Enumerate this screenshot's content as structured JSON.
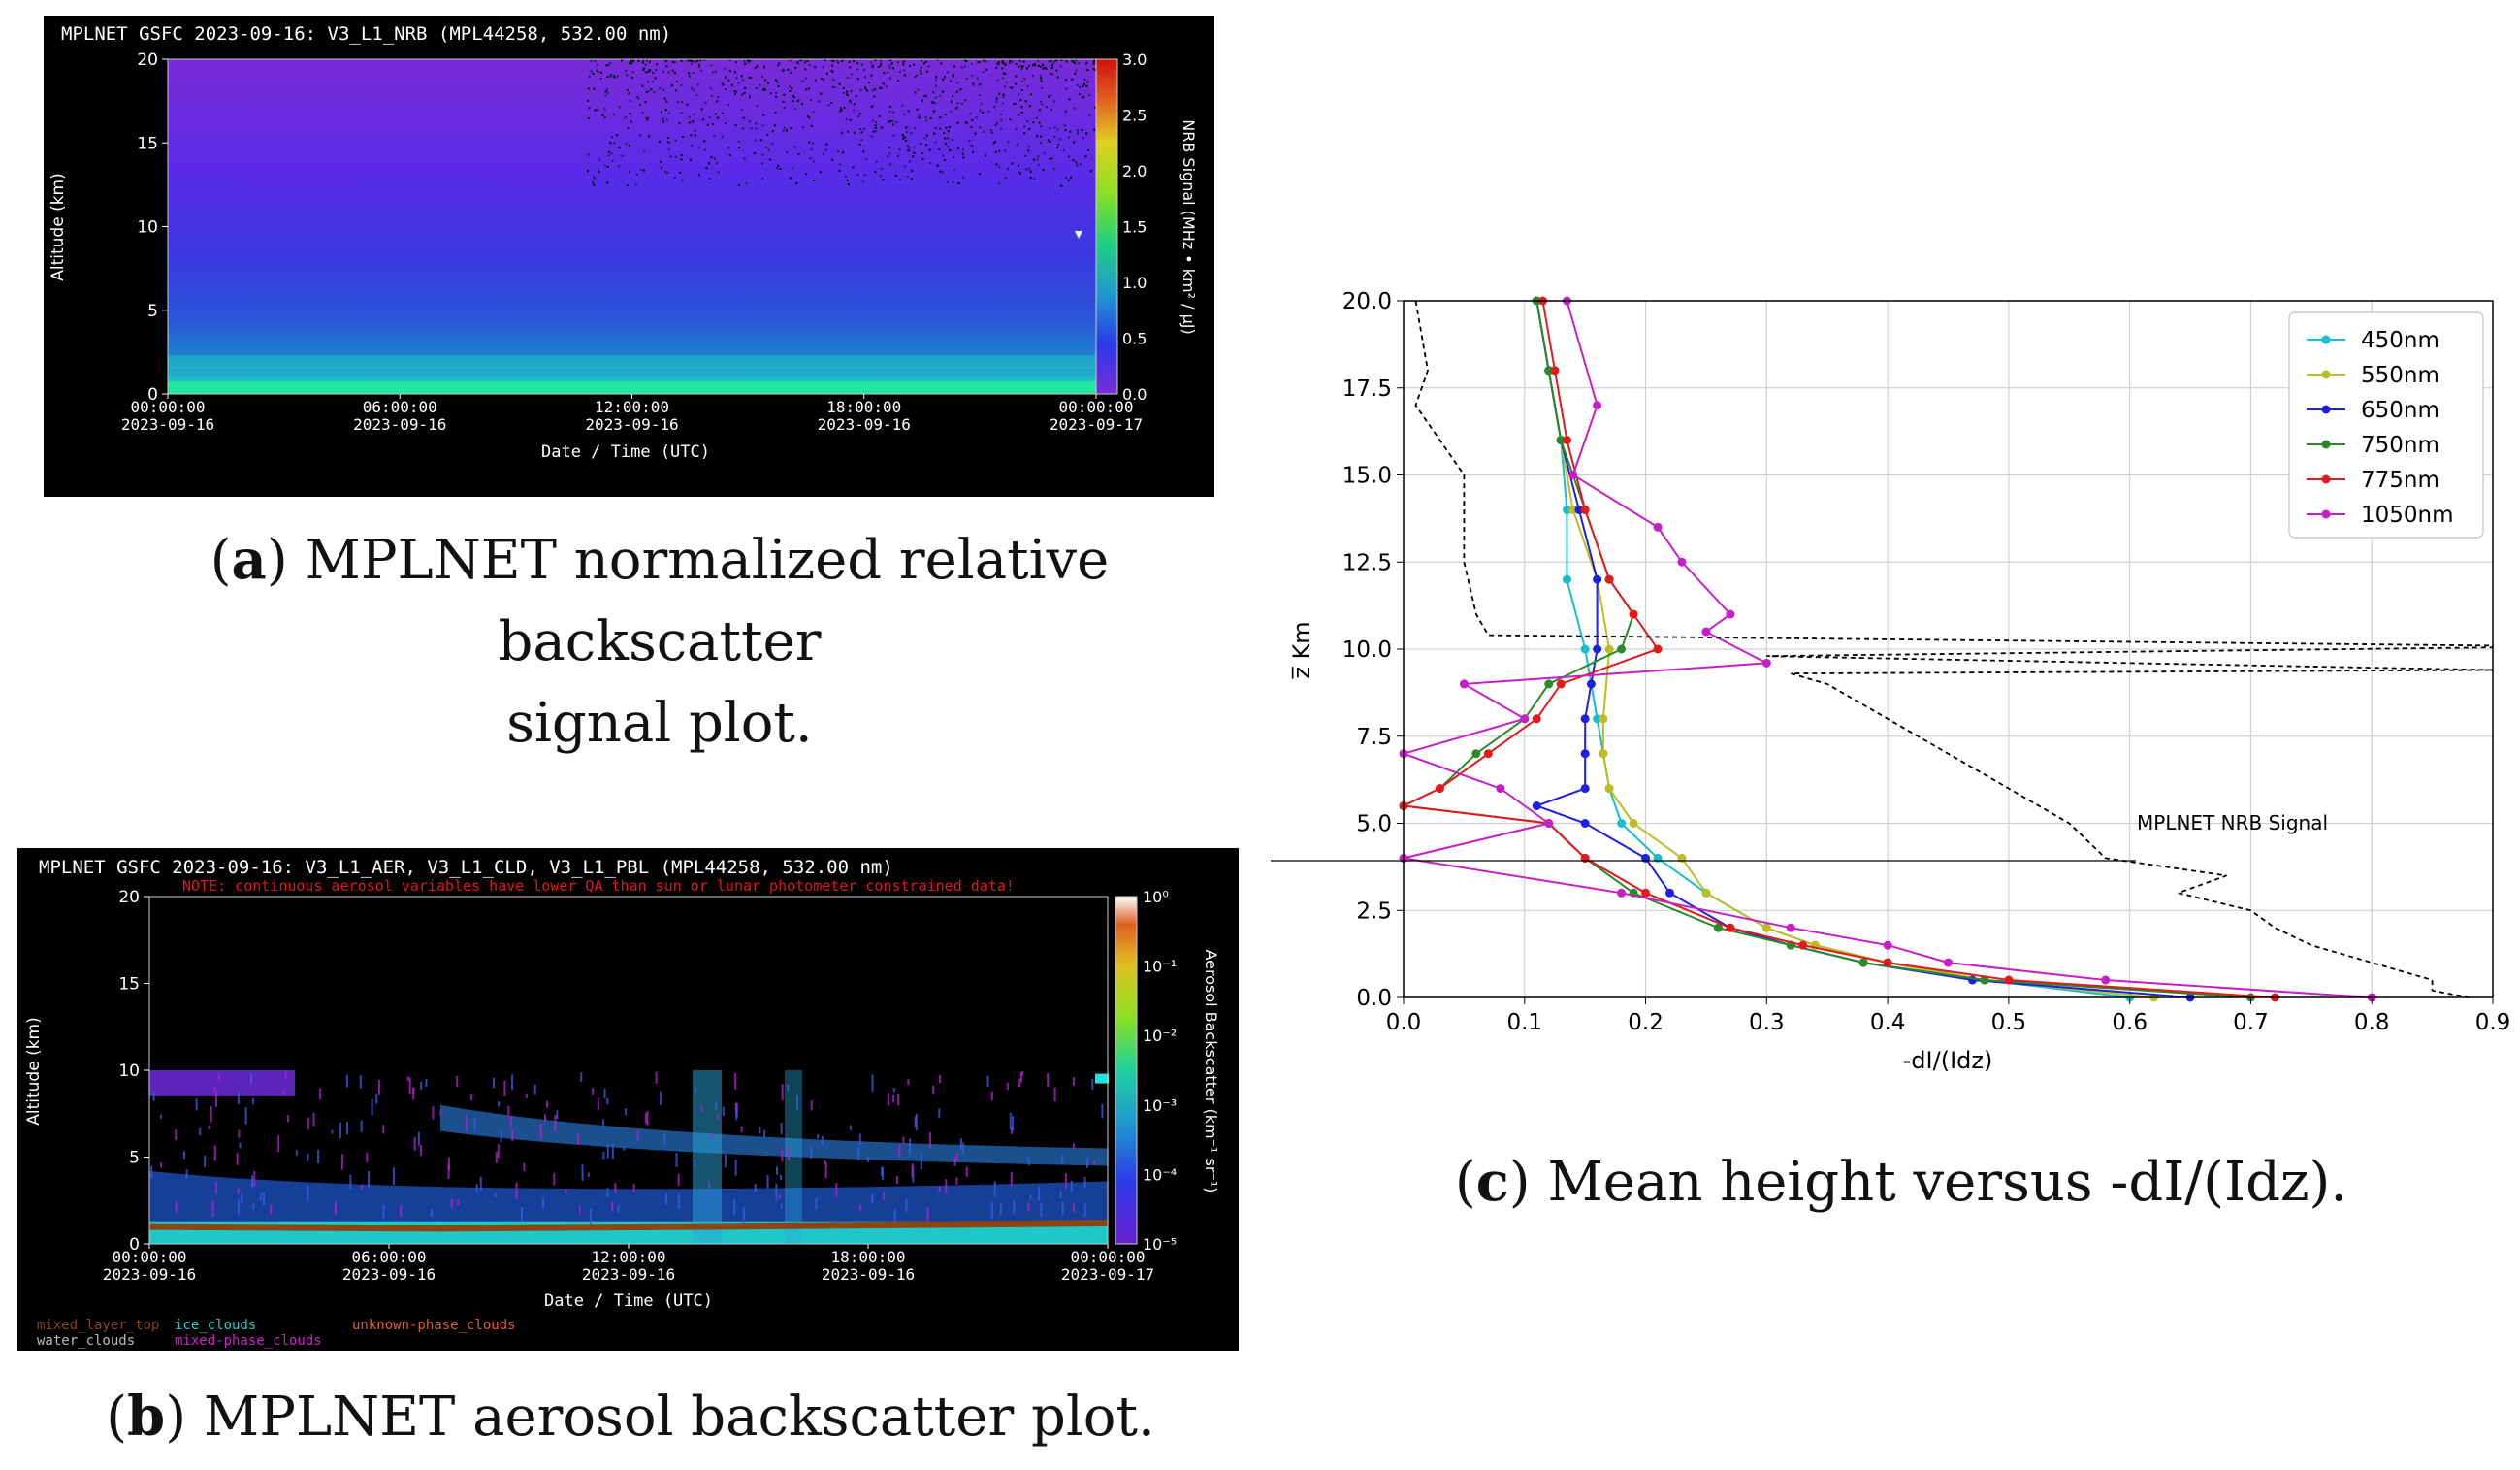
{
  "panels": {
    "a": {
      "title": "MPLNET GSFC 2023-09-16:  V3_L1_NRB  (MPL44258, 532.00 nm)",
      "ylabel": "Altitude (km)",
      "yticks": [
        "20",
        "15",
        "10",
        "5",
        "0"
      ],
      "xticks_time": [
        "00:00:00",
        "06:00:00",
        "12:00:00",
        "18:00:00",
        "00:00:00"
      ],
      "xticks_date": [
        "2023-09-16",
        "2023-09-16",
        "2023-09-16",
        "2023-09-16",
        "2023-09-17"
      ],
      "xlabel": "Date / Time (UTC)",
      "colorbar_label": "NRB Signal (MHz • km² / μJ)",
      "colorbar_ticks": [
        "3.0",
        "2.5",
        "2.0",
        "1.5",
        "1.0",
        "0.5",
        "0.0"
      ],
      "caption_letter": "a",
      "caption_line1": " MPLNET normalized relative backscatter",
      "caption_line2": "signal plot."
    },
    "b": {
      "title": "MPLNET GSFC 2023-09-16:  V3_L1_AER, V3_L1_CLD, V3_L1_PBL  (MPL44258, 532.00 nm)",
      "note": "NOTE: continuous aerosol variables have lower QA than sun or lunar photometer constrained data!",
      "ylabel": "Altitude (km)",
      "yticks": [
        "20",
        "15",
        "10",
        "5",
        "0"
      ],
      "xticks_time": [
        "00:00:00",
        "06:00:00",
        "12:00:00",
        "18:00:00",
        "00:00:00"
      ],
      "xticks_date": [
        "2023-09-16",
        "2023-09-16",
        "2023-09-16",
        "2023-09-16",
        "2023-09-17"
      ],
      "xlabel": "Date / Time (UTC)",
      "colorbar_label": "Aerosol Backscatter (km⁻¹ sr⁻¹)",
      "colorbar_ticks": [
        "10⁰",
        "10⁻¹",
        "10⁻²",
        "10⁻³",
        "10⁻⁴",
        "10⁻⁵"
      ],
      "legend": [
        "mixed_layer_top",
        "water_clouds",
        "ice_clouds",
        "mixed-phase_clouds",
        "unknown-phase_clouds"
      ],
      "caption_letter": "b",
      "caption_text": " MPLNET aerosol backscatter plot."
    },
    "c": {
      "caption_letter": "c",
      "caption_text": " Mean height versus -dI/(Idz)."
    }
  },
  "chart_data": {
    "type": "line",
    "xlabel": "-dI/(Idz)",
    "ylabel": "z̅ Km",
    "xlim": [
      0.0,
      0.9
    ],
    "ylim": [
      0.0,
      20.0
    ],
    "xticks": [
      "0.0",
      "0.1",
      "0.2",
      "0.3",
      "0.4",
      "0.5",
      "0.6",
      "0.7",
      "0.8",
      "0.9"
    ],
    "yticks": [
      "0.0",
      "2.5",
      "5.0",
      "7.5",
      "10.0",
      "12.5",
      "15.0",
      "17.5",
      "20.0"
    ],
    "grid": true,
    "legend_position": "top-right",
    "annotation": "MPLNET NRB Signal",
    "series": [
      {
        "name": "450nm",
        "color": "#17becf",
        "y": [
          20.0,
          18.0,
          16.0,
          14.0,
          12.0,
          10.0,
          8.0,
          7.0,
          6.0,
          5.0,
          4.0,
          3.0,
          2.0,
          1.5,
          1.0,
          0.5,
          0.0
        ],
        "x": [
          0.11,
          0.12,
          0.13,
          0.135,
          0.135,
          0.15,
          0.16,
          0.165,
          0.17,
          0.18,
          0.21,
          0.25,
          0.3,
          0.34,
          0.4,
          0.48,
          0.6
        ]
      },
      {
        "name": "550nm",
        "color": "#bcbd22",
        "y": [
          20.0,
          18.0,
          16.0,
          14.0,
          12.0,
          10.0,
          8.0,
          7.0,
          6.0,
          5.0,
          4.0,
          3.0,
          2.0,
          1.5,
          1.0,
          0.5,
          0.0
        ],
        "x": [
          0.11,
          0.12,
          0.13,
          0.14,
          0.16,
          0.17,
          0.165,
          0.165,
          0.17,
          0.19,
          0.23,
          0.25,
          0.3,
          0.34,
          0.4,
          0.48,
          0.62
        ]
      },
      {
        "name": "650nm",
        "color": "#1f1fe0",
        "y": [
          20.0,
          18.0,
          16.0,
          14.0,
          12.0,
          10.0,
          9.0,
          8.0,
          7.0,
          6.0,
          5.5,
          5.0,
          4.0,
          3.0,
          2.0,
          1.5,
          1.0,
          0.5,
          0.0
        ],
        "x": [
          0.11,
          0.12,
          0.13,
          0.145,
          0.16,
          0.16,
          0.155,
          0.15,
          0.15,
          0.15,
          0.11,
          0.15,
          0.2,
          0.22,
          0.27,
          0.32,
          0.38,
          0.47,
          0.65
        ]
      },
      {
        "name": "750nm",
        "color": "#2a8a2a",
        "y": [
          20.0,
          18.0,
          16.0,
          14.0,
          12.0,
          11.0,
          10.0,
          9.0,
          8.0,
          7.0,
          6.0,
          5.5,
          5.0,
          4.0,
          3.0,
          2.0,
          1.5,
          1.0,
          0.5,
          0.0
        ],
        "x": [
          0.11,
          0.12,
          0.13,
          0.15,
          0.17,
          0.19,
          0.18,
          0.12,
          0.1,
          0.06,
          0.03,
          0.0,
          0.12,
          0.15,
          0.19,
          0.26,
          0.32,
          0.38,
          0.48,
          0.7
        ]
      },
      {
        "name": "775nm",
        "color": "#e31a1c",
        "y": [
          20.0,
          18.0,
          16.0,
          14.0,
          12.0,
          11.0,
          10.0,
          9.0,
          8.0,
          7.0,
          6.0,
          5.5,
          5.0,
          4.0,
          3.0,
          2.0,
          1.5,
          1.0,
          0.5,
          0.0
        ],
        "x": [
          0.115,
          0.125,
          0.135,
          0.15,
          0.17,
          0.19,
          0.21,
          0.13,
          0.11,
          0.07,
          0.03,
          0.0,
          0.12,
          0.15,
          0.2,
          0.27,
          0.33,
          0.4,
          0.5,
          0.72
        ]
      },
      {
        "name": "1050nm",
        "color": "#c71fc7",
        "y": [
          20.0,
          17.0,
          15.0,
          13.5,
          12.5,
          11.0,
          10.5,
          9.6,
          9.0,
          8.0,
          7.0,
          6.0,
          5.0,
          4.0,
          3.0,
          2.0,
          1.5,
          1.0,
          0.5,
          0.0
        ],
        "x": [
          0.135,
          0.16,
          0.14,
          0.21,
          0.23,
          0.27,
          0.25,
          0.3,
          0.05,
          0.1,
          0.0,
          0.08,
          0.12,
          0.0,
          0.18,
          0.32,
          0.4,
          0.45,
          0.58,
          0.8
        ]
      },
      {
        "name": "MPLNET NRB Signal",
        "color": "#000000",
        "dashed": true,
        "y": [
          20.0,
          18.0,
          17.0,
          15.0,
          14.0,
          12.5,
          11.0,
          10.4,
          10.1,
          10.05,
          9.8,
          9.4,
          9.3,
          9.0,
          8.0,
          7.0,
          6.0,
          5.0,
          4.0,
          3.5,
          3.0,
          2.5,
          2.0,
          1.5,
          1.0,
          0.5,
          0.2,
          0.0
        ],
        "x": [
          0.01,
          0.02,
          0.01,
          0.05,
          0.05,
          0.05,
          0.06,
          0.07,
          0.9,
          0.9,
          0.3,
          0.9,
          0.32,
          0.35,
          0.4,
          0.45,
          0.5,
          0.55,
          0.58,
          0.68,
          0.64,
          0.7,
          0.72,
          0.75,
          0.8,
          0.85,
          0.85,
          0.88
        ]
      }
    ]
  }
}
